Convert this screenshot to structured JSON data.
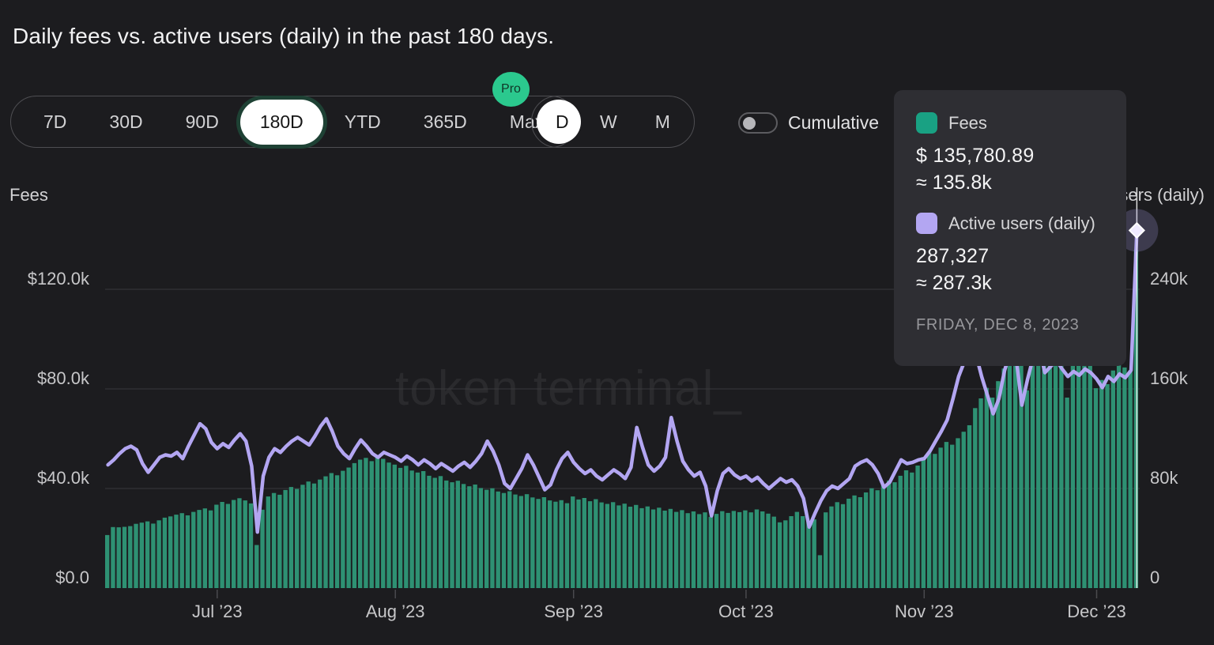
{
  "title": "Daily fees vs. active users (daily) in the past 180 days.",
  "controls": {
    "ranges": [
      {
        "label": "7D",
        "selected": false
      },
      {
        "label": "30D",
        "selected": false
      },
      {
        "label": "90D",
        "selected": false
      },
      {
        "label": "180D",
        "selected": true
      },
      {
        "label": "YTD",
        "selected": false
      },
      {
        "label": "365D",
        "selected": false
      },
      {
        "label": "Max",
        "selected": false
      }
    ],
    "pro_badge": "Pro",
    "frequencies": [
      {
        "label": "D",
        "selected": true
      },
      {
        "label": "W",
        "selected": false
      },
      {
        "label": "M",
        "selected": false
      }
    ],
    "cumulative_label": "Cumulative",
    "cumulative_on": false
  },
  "colors": {
    "fees_green": "#19a183",
    "bar_green": "#2e9173",
    "users_purple": "#b3a6f2",
    "pro_green": "#2bc98e"
  },
  "watermark": "token terminal_",
  "tooltip": {
    "fees_label": "Fees",
    "fees_value": "$ 135,780.89",
    "fees_approx": "≈ 135.8k",
    "users_label": "Active users (daily)",
    "users_value": "287,327",
    "users_approx": "≈ 287.3k",
    "date": "FRIDAY, DEC 8, 2023"
  },
  "chart_data": {
    "type": "bar+line",
    "title": "Daily fees vs. active users (daily) in the past 180 days.",
    "grid": true,
    "legend_position": "tooltip",
    "x_axis": {
      "unit": "day",
      "start_date": "2023-06-12",
      "end_date": "2023-12-08",
      "n_points": 180,
      "ticks": [
        {
          "label": "Jul ’23",
          "i": 19
        },
        {
          "label": "Aug ’23",
          "i": 50
        },
        {
          "label": "Sep ’23",
          "i": 81
        },
        {
          "label": "Oct ’23",
          "i": 111
        },
        {
          "label": "Nov ’23",
          "i": 142
        },
        {
          "label": "Dec ’23",
          "i": 172
        }
      ]
    },
    "left_axis": {
      "title": "Fees",
      "unit": "USD (thousands)",
      "range": [
        0,
        127
      ],
      "ticks": [
        {
          "label": "$0.0",
          "v": 0
        },
        {
          "label": "$40.0k",
          "v": 40
        },
        {
          "label": "$80.0k",
          "v": 80
        },
        {
          "label": "$120.0k",
          "v": 120
        }
      ]
    },
    "right_axis": {
      "title": "Active users (daily)",
      "unit": "users (thousands)",
      "range": [
        0,
        254
      ],
      "ticks": [
        {
          "label": "0",
          "v": 0
        },
        {
          "label": "80k",
          "v": 80
        },
        {
          "label": "160k",
          "v": 160
        },
        {
          "label": "240k",
          "v": 240
        }
      ]
    },
    "series": [
      {
        "name": "Fees",
        "type": "bar",
        "axis": "left",
        "unit": "$ thousands/day",
        "color": "#2e9173",
        "values": [
          21.3,
          24.5,
          24.4,
          24.6,
          24.9,
          25.8,
          26.3,
          26.8,
          25.9,
          27.2,
          28.3,
          28.8,
          29.5,
          30.1,
          29.2,
          30.6,
          31.4,
          32.0,
          31.2,
          33.5,
          34.6,
          33.8,
          35.4,
          36.1,
          35.2,
          34.0,
          17.3,
          31.5,
          36.8,
          38.2,
          37.5,
          39.4,
          40.6,
          39.8,
          41.5,
          42.8,
          42.0,
          43.6,
          44.9,
          46.2,
          45.3,
          47.1,
          48.4,
          50.2,
          51.6,
          52.3,
          51.0,
          52.8,
          51.9,
          50.4,
          49.6,
          48.3,
          49.1,
          47.2,
          46.4,
          47.0,
          45.1,
          44.3,
          45.0,
          43.2,
          42.5,
          43.1,
          41.8,
          40.9,
          41.6,
          40.2,
          39.5,
          40.1,
          38.8,
          38.2,
          38.9,
          37.6,
          37.0,
          37.7,
          36.4,
          35.8,
          36.5,
          35.2,
          34.7,
          35.3,
          34.1,
          36.8,
          35.6,
          36.2,
          34.9,
          35.7,
          34.4,
          33.8,
          34.5,
          33.2,
          33.9,
          32.7,
          33.4,
          32.1,
          32.8,
          31.6,
          32.3,
          31.1,
          31.8,
          30.6,
          31.3,
          30.1,
          30.8,
          29.7,
          30.4,
          28.6,
          29.8,
          30.9,
          30.2,
          31.0,
          30.5,
          31.2,
          30.4,
          31.6,
          30.8,
          29.9,
          28.7,
          26.4,
          27.2,
          28.9,
          30.6,
          28.9,
          26.8,
          27.6,
          13.2,
          30.4,
          32.8,
          34.5,
          33.7,
          35.9,
          37.2,
          36.5,
          38.4,
          40.1,
          39.3,
          41.6,
          43.2,
          42.5,
          45.1,
          47.3,
          46.4,
          49.2,
          52.6,
          54.8,
          53.9,
          56.4,
          58.7,
          57.6,
          60.2,
          62.8,
          65.4,
          72.3,
          76.2,
          80.4,
          76.5,
          83.1,
          88.2,
          92.4,
          90.1,
          94.3,
          79.4,
          95.2,
          91.8,
          96.4,
          93.1,
          95.6,
          90.8,
          76.5,
          90.2,
          94.6,
          92.3,
          95.8,
          80.3,
          83.6,
          81.9,
          87.4,
          91.2,
          88.6,
          87.1,
          135.78
        ]
      },
      {
        "name": "Active users (daily)",
        "type": "line",
        "axis": "right",
        "unit": "users (thousands)/day",
        "color": "#b3a6f2",
        "values": [
          99,
          103,
          108,
          112,
          114,
          111,
          100,
          93,
          99,
          105,
          107,
          106,
          109,
          104,
          114,
          123,
          132,
          128,
          117,
          112,
          116,
          113,
          119,
          124,
          118,
          98,
          45,
          90,
          105,
          112,
          109,
          114,
          118,
          121,
          118,
          115,
          122,
          130,
          136,
          126,
          114,
          108,
          104,
          112,
          119,
          114,
          108,
          105,
          109,
          107,
          105,
          102,
          106,
          103,
          99,
          103,
          100,
          96,
          100,
          97,
          94,
          98,
          101,
          97,
          102,
          108,
          118,
          110,
          99,
          84,
          80,
          88,
          96,
          107,
          99,
          89,
          79,
          83,
          95,
          104,
          109,
          101,
          96,
          92,
          95,
          90,
          87,
          91,
          95,
          92,
          88,
          97,
          129,
          113,
          99,
          94,
          98,
          105,
          137,
          118,
          102,
          95,
          90,
          93,
          82,
          58,
          78,
          92,
          96,
          91,
          88,
          90,
          86,
          89,
          84,
          80,
          84,
          88,
          85,
          87,
          82,
          72,
          49,
          60,
          70,
          78,
          82,
          80,
          84,
          88,
          98,
          101,
          103,
          99,
          92,
          81,
          85,
          94,
          103,
          100,
          101,
          103,
          104,
          110,
          118,
          126,
          135,
          152,
          170,
          182,
          192,
          188,
          170,
          155,
          140,
          152,
          175,
          190,
          185,
          147,
          168,
          186,
          194,
          173,
          178,
          183,
          176,
          170,
          174,
          171,
          176,
          173,
          168,
          161,
          170,
          166,
          172,
          169,
          175,
          287.327
        ]
      }
    ],
    "highlight": {
      "index": 179,
      "date": "FRIDAY, DEC 8, 2023",
      "fees_exact": "$ 135,780.89",
      "fees_approx": "≈ 135.8k",
      "users_exact": "287,327",
      "users_approx": "≈ 287.3k"
    }
  }
}
